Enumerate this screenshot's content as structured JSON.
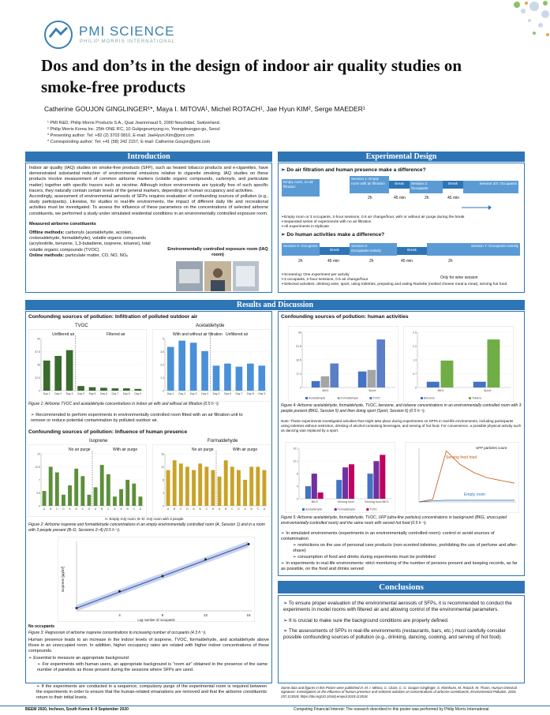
{
  "brand": {
    "name": "PMI SCIENCE",
    "sub": "PHILIP MORRIS INTERNATIONAL"
  },
  "title": "Dos and don’ts in the design of indoor air quality studies on smoke-free products",
  "authors": "Catherine GOUJON GINGLINGER¹*, Maya I. MITOVA¹, Michel ROTACH¹, Jae Hyun KIM², Serge MAEDER¹",
  "affiliations": [
    "¹ PMI R&D, Philip Morris Products S.A., Quai Jeanrenaud 5, 2000 Neuchâtel, Switzerland.",
    "² Philip Morris Korea Inc. 25th ONE IFC, 10 Gukjegeumyung-ro, Yeongdeungpo-gu, Seoul",
    "* Presenting author: Tel: +82 (2) 3703 0810, E-mail: JaeHyun.Kim@pmi.com",
    "* Corresponding author: Tel: +41 (58) 242 2157, E-mail: Catherine.Goujon@pmi.com"
  ],
  "sections": {
    "intro": "Introduction",
    "exp": "Experimental Design",
    "results": "Results and Discussion",
    "conclusions": "Conclusions"
  },
  "intro": {
    "p1": "Indoor air quality (IAQ) studies on smoke-free products (SFP), such as heated tobacco products and e-cigarettes, have demonstrated substantial reduction of environmental emissions relative to cigarette smoking. IAQ studies on these products involve measurement of common airborne markers (volatile organic compounds, carbonyls, and particulate matter) together with specific tracers such as nicotine. Although indoor environments are typically free of such specific tracers, they naturally contain certain levels of the general markers, depending on human occupancy and activities.",
    "p2": "Accordingly, assessment of environmental aerosols of SFPs requires evaluation of confounding sources of pollution (e.g., study participants). Likewise, for studies in real-life environments, the impact of different daily life and recreational activities must be investigated. To assess the influence of these parameters on the concentrations of selected airborne constituents, we performed a study under simulated residential conditions in an environmentally controlled exposure room.",
    "measured_title": "Measured airborne constituents",
    "offline_label": "Offline methods:",
    "offline": " carbonyls (acetaldehyde, acrolein, crotonaldehyde, formaldehyde), volatile organic compounds (acrylonitrile, benzene, 1,3-butadiene, isoprene, toluene), total volatile organic compounds (TVOC)",
    "online_label": "Online methods:",
    "online": " particulate matter, CO, NO, NOₓ",
    "room_title": "Environmentally controlled exposure room (IAQ room)"
  },
  "exp": {
    "q1": "➢ Do air filtration and human presence make a difference?",
    "t1": [
      "Empty room, no air filtration",
      "Session 1: Empty room with air filtration",
      "Break",
      "Session 2: Occupants",
      "Break",
      "Session 3/4: Occupants"
    ],
    "t1_dur": [
      "2h",
      "45 min",
      "2h",
      "45 min"
    ],
    "b1": [
      "➢Empty room or 3 occupants, 2-hour sessions, 0.5 air change/hour, with or without air purge during the break",
      "➢Separated series of experiments with no air filtration",
      "➢All experiments in triplicate"
    ],
    "q2": "➢ Do human activities make a difference?",
    "t2": [
      "Session 5: Occupants",
      "Break",
      "Session 6: Occupants+activity",
      "Break",
      "Session 7: Occupants+activity"
    ],
    "t2_dur": [
      "2h",
      "45 min",
      "2h",
      "45 min",
      "2h"
    ],
    "t2_note": "Only for wine session",
    "b2": [
      "➢Screening: One experiment per activity",
      "➢3 occupants, 2-hour sessions, 0.5 air change/hour",
      "➢Selected activities: drinking wine, sport, using toiletries, preparing and eating Raclette (melted cheese meal & meat), serving hot food"
    ]
  },
  "res": {
    "h1": "Confounding sources of pollution: Infiltration of polluted outdoor air",
    "tvoc": "TVOC",
    "acet": "Acetaldehyde",
    "unf": "Unfiltered air",
    "fil": "Filtered air",
    "unfil2": "Unfiltered air",
    "wwo": "With and without air filtration",
    "cap1": "Figure 1: Airborne TVOC and acetaldehyde concentrations in indoor air with and without air filtration (0.5 h⁻¹).",
    "rec1": "➢ Recommended to perform experiments in environmentally controlled room fitted with an air filtration unit to remove or reduce potential contamination by polluted outdoor air.",
    "h2": "Confounding sources of pollution: Influence of human presence",
    "iso": "Isoprene",
    "form": "Formaldehyde",
    "nop": "No air purge",
    "wp": "With air purge",
    "nop2": "No air purge",
    "wp2": "With air purge",
    "legend2": "A: Empty IAQ room; B–D: IAQ room with 3 people",
    "cap2": "Figure 2: Airborne isoprene and formaldehyde concentrations in an empty environmentally controlled room (A, Session 1) and in a room with 3 people present (B–D, Sessions 2–4) (0.5 h⁻¹).",
    "reg_y": "Isoprene [µg/m³]",
    "reg_x": "Log number of occupants",
    "noocc": "No occupants",
    "xt": [
      "4",
      "8",
      "12",
      "16"
    ],
    "cap3": "Figure 3: Regression of airborne isoprene concentrations to increasing number of occupants (4.3 h⁻¹).",
    "p3": "Human presence leads to an increase in the indoor levels of isoprene, TVOC, formaldehyde, and acetaldehyde above those in an unoccupied room. In addition, higher occupancy rates are related with higher indoor concentrations of these compounds.",
    "b3": "➢ Essential to measure an appropriate background",
    "b3a": "➢ For experiments with human users, an appropriate background is “room air” obtained in the presence of the same number of panelists as those present during the sessions where SFPs are used.",
    "b3b": "➢ If the experiments are conducted in a sequence, compulsory purge of the experimental room is required between the experiments in order to ensure that the human-related emanations are removed and that the airborne constituents return to their initial levels.",
    "h4": "Confounding sources of pollution: human activities",
    "cap4": "Figure 4: Airborne acetaldehyde, formaldehyde, TVOC, benzene, and toluene concentrations in an environmentally controlled room with 3 people present (BKG, Session 5) and then doing sport (Sport, Session 6) (0.5 h⁻¹).",
    "note": "Note: These experiments investigated activities that might take place during experiments on SFPs in real-life environments, including participants using toiletries without restriction, drinking of alcohol-containing beverages, and serving of hot food. For convenience, a possible physical activity such as dancing was replaced by a sport.",
    "ufp_title": "UFP particles count",
    "serving": "Serving food food",
    "empty": "Empty room",
    "cap5": "Figure 5: Airborne acetaldehyde, formaldehyde, TVOC, UFP (ultra-fine particles) concentrations in background (BKG, unoccupied environmentally-controlled room) and the same room with served hot food (0.5 h⁻¹).",
    "b5": "➢ In simulated environments (experiments in an environmentally controlled room): control or avoid sources of contamination",
    "b5a": "➢ restrictions on the use of personal care products (non-scented toiletries, prohibiting the use of perfume and after-shave)",
    "b5b": "➢ consumption of food and drinks during experiments must be prohibited",
    "b5c": "➢ In experiments in real-life environments: strict monitoring of the number of persons present and keeping records, as far as possible, on the food and drinks served"
  },
  "concl": {
    "c1": "➢ To ensure proper evaluation of the environmental aerosols of SFPs, it is recommended to conduct the experiments in model rooms with filtered air and allowing control of the environmental parameters.",
    "c2": "➢ It is crucial to make sure the background conditions are properly defined.",
    "c3": "➢ The assessments of SFPs in real-life environments (restaurants, bars, etc.) must carefully consider possible confounding sources of pollution (e.g., drinking, dancing, cooking, and serving of hot food).",
    "ref": "Some data and figures in this Poster were published in: M. I. Mitova, C. Cluze, C. G. Goujon-Ginglinger, S. Kleinhans, M. Rotach, M. Tharin, Human chemical signature: Investigation on the influence of human presence and selected activities on concentrations of airborne constituents, Environmental Pollution, 2020, 257,113518, https://doi.org/10.1016/j.envpol.2019.113518."
  },
  "footer": {
    "left": "BEEM 2020, Incheon, South Korea      6–9 September 2020",
    "right": "Competing Financial Interest: The research described in this poster was performed by Philip Morris International"
  },
  "chart_data": [
    {
      "type": "bar",
      "title": "TVOC",
      "categories": [
        "Day 1",
        "Day 2",
        "Day 3",
        "Day 4",
        "Day 5",
        "Day 6",
        "Day 7",
        "Day 8",
        "Day 9"
      ],
      "values": [
        52,
        60,
        70,
        8,
        6,
        5,
        4,
        4,
        3
      ],
      "ylim": [
        0,
        90
      ]
    },
    {
      "type": "bar",
      "title": "Acetaldehyde",
      "categories": [
        "Day 1",
        "Day 2",
        "Day 3",
        "Day 4",
        "Day 5",
        "Day 6",
        "Day 7",
        "Day 8",
        "Day 9"
      ],
      "values": [
        4.2,
        4.8,
        4.6,
        3.8,
        2.4,
        2.6,
        2.3,
        2.6,
        2.4
      ],
      "ylim": [
        0,
        5
      ]
    },
    {
      "type": "bar",
      "title": "Isoprene",
      "categories": [
        "A",
        "B",
        "C",
        "D",
        "A",
        "B",
        "C",
        "D",
        "A",
        "B",
        "C",
        "D",
        "A",
        "B",
        "C",
        "D"
      ],
      "values": [
        4,
        10.5,
        9,
        3,
        5.5,
        10,
        8,
        3,
        5,
        11,
        8.5,
        2.5,
        4.5,
        7,
        6,
        2.5
      ],
      "ylim": [
        0,
        14
      ]
    },
    {
      "type": "bar",
      "title": "Formaldehyde",
      "categories": [
        "A",
        "B",
        "C",
        "D",
        "A",
        "B",
        "C",
        "D",
        "A",
        "B",
        "C",
        "D",
        "A",
        "B",
        "C",
        "D"
      ],
      "values": [
        11,
        14,
        13,
        12,
        11,
        13,
        12,
        11,
        9,
        14,
        12,
        11,
        8,
        12,
        12,
        11
      ],
      "ylim": [
        0,
        16
      ]
    },
    {
      "type": "scatter",
      "title": "",
      "xlabel": "Log number of occupants",
      "ylabel": "Isoprene [µg/m³]",
      "x": [
        0,
        4,
        8,
        12,
        16
      ],
      "y": [
        2,
        14,
        25,
        37,
        48
      ]
    },
    {
      "type": "bar",
      "title": "",
      "categories": [
        "BKG",
        "Sport"
      ],
      "series": [
        {
          "name": "Acetaldehyde",
          "values": [
            8,
            20
          ]
        },
        {
          "name": "Formaldehyde",
          "values": [
            14,
            22
          ]
        },
        {
          "name": "TVOC",
          "values": [
            30,
            60
          ]
        }
      ]
    },
    {
      "type": "bar",
      "title": "",
      "categories": [
        "BKG",
        "Sport"
      ],
      "series": [
        {
          "name": "Benzene",
          "values": [
            0.3,
            0.3
          ]
        },
        {
          "name": "Toluene",
          "values": [
            1.4,
            2.5
          ]
        }
      ]
    },
    {
      "type": "bar",
      "title": "",
      "categories": [
        "BKG",
        "Serving food",
        "Serving food BKG"
      ],
      "series": [
        {
          "name": "Acetaldehyde",
          "values": [
            4,
            6,
            8
          ]
        },
        {
          "name": "Formaldehyde",
          "values": [
            8,
            10,
            12
          ]
        },
        {
          "name": "TVOC",
          "values": [
            2,
            11,
            14
          ]
        }
      ]
    },
    {
      "type": "line",
      "title": "UFP particles count",
      "series": [
        {
          "name": "Serving food food",
          "values": [
            0,
            5,
            95,
            70,
            55,
            45,
            40,
            35
          ]
        },
        {
          "name": "Empty room",
          "values": [
            0,
            2,
            3,
            3,
            3,
            3,
            3,
            3
          ]
        }
      ]
    }
  ]
}
